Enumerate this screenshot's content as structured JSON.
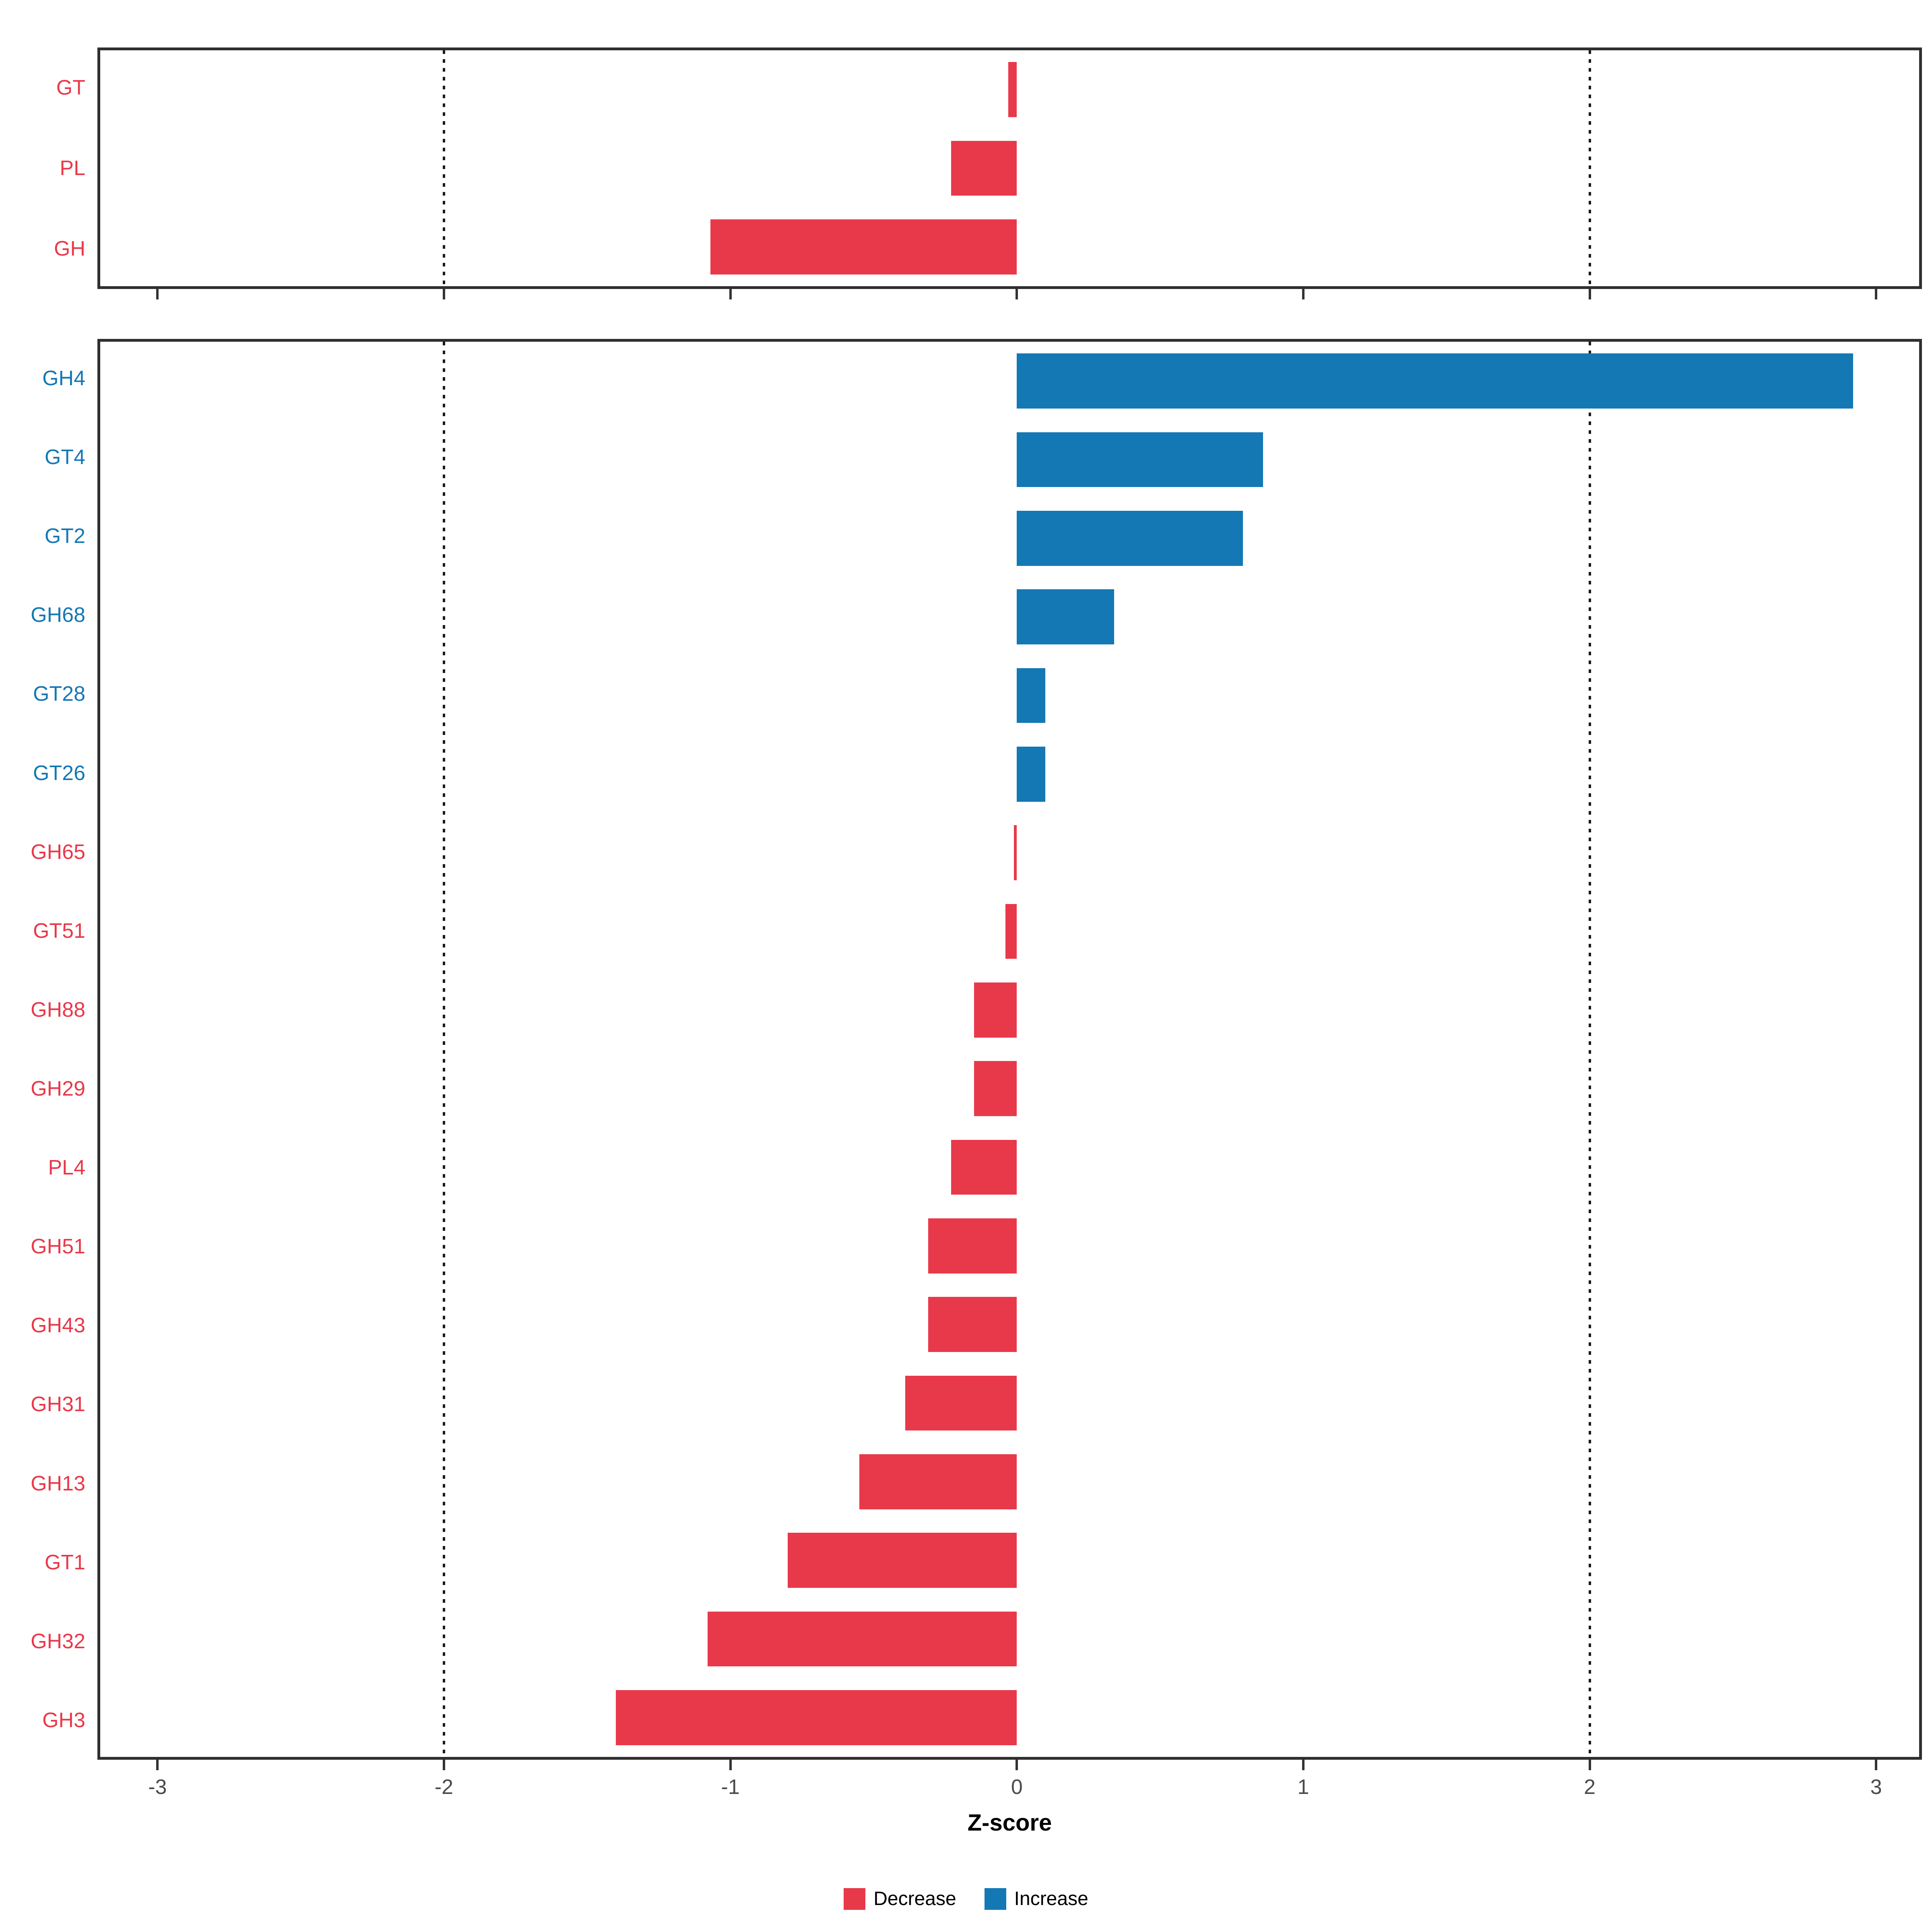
{
  "chart_data": {
    "type": "bar",
    "orientation": "horizontal",
    "xlabel": "Z-score",
    "xlim": [
      -3.2,
      3.15
    ],
    "x_ticks": [
      -3,
      -2,
      -1,
      0,
      1,
      2,
      3
    ],
    "threshold_lines": [
      -2,
      2
    ],
    "grid": false,
    "legend_position": "bottom",
    "colors": {
      "decrease": "#E8394A",
      "increase": "#1478B5"
    },
    "legend": [
      {
        "key": "decrease",
        "label": "Decrease"
      },
      {
        "key": "increase",
        "label": "Increase"
      }
    ],
    "panels": [
      {
        "name": "top",
        "bars": [
          {
            "label": "GT",
            "value": -0.03,
            "group": "decrease"
          },
          {
            "label": "PL",
            "value": -0.23,
            "group": "decrease"
          },
          {
            "label": "GH",
            "value": -1.07,
            "group": "decrease"
          }
        ]
      },
      {
        "name": "bottom",
        "bars": [
          {
            "label": "GH4",
            "value": 2.92,
            "group": "increase"
          },
          {
            "label": "GT4",
            "value": 0.86,
            "group": "increase"
          },
          {
            "label": "GT2",
            "value": 0.79,
            "group": "increase"
          },
          {
            "label": "GH68",
            "value": 0.34,
            "group": "increase"
          },
          {
            "label": "GT28",
            "value": 0.1,
            "group": "increase"
          },
          {
            "label": "GT26",
            "value": 0.1,
            "group": "increase"
          },
          {
            "label": "GH65",
            "value": -0.01,
            "group": "decrease"
          },
          {
            "label": "GT51",
            "value": -0.04,
            "group": "decrease"
          },
          {
            "label": "GH88",
            "value": -0.15,
            "group": "decrease"
          },
          {
            "label": "GH29",
            "value": -0.15,
            "group": "decrease"
          },
          {
            "label": "PL4",
            "value": -0.23,
            "group": "decrease"
          },
          {
            "label": "GH51",
            "value": -0.31,
            "group": "decrease"
          },
          {
            "label": "GH43",
            "value": -0.31,
            "group": "decrease"
          },
          {
            "label": "GH31",
            "value": -0.39,
            "group": "decrease"
          },
          {
            "label": "GH13",
            "value": -0.55,
            "group": "decrease"
          },
          {
            "label": "GT1",
            "value": -0.8,
            "group": "decrease"
          },
          {
            "label": "GH32",
            "value": -1.08,
            "group": "decrease"
          },
          {
            "label": "GH3",
            "value": -1.4,
            "group": "decrease"
          }
        ]
      }
    ]
  }
}
